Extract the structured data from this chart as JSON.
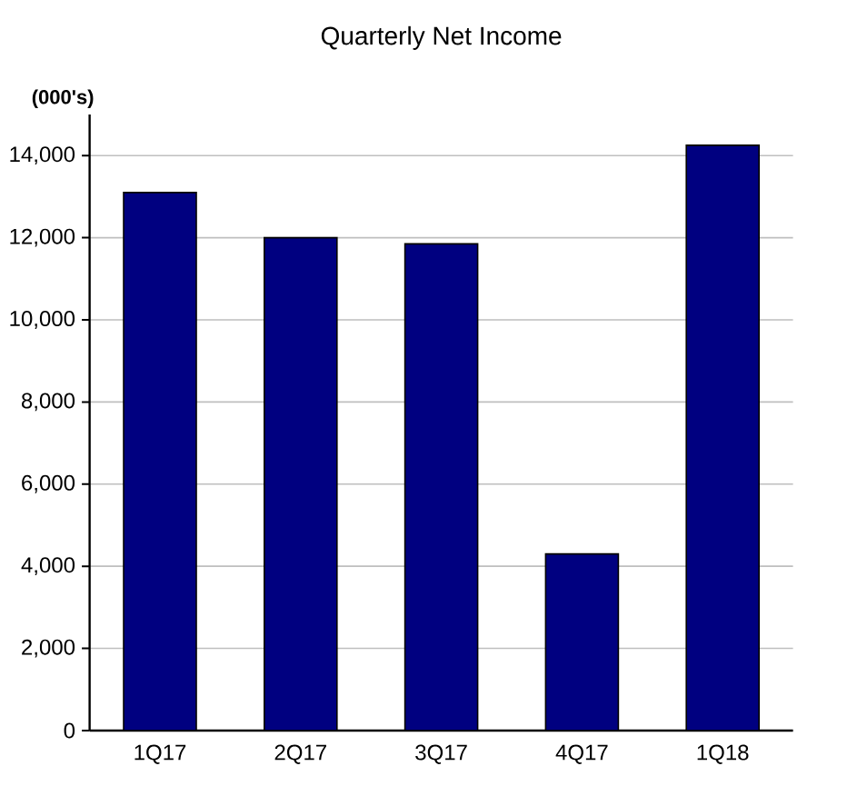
{
  "chart_data": {
    "type": "bar",
    "title": "Quarterly Net Income",
    "ylabel": "(000's)",
    "categories": [
      "1Q17",
      "2Q17",
      "3Q17",
      "4Q17",
      "1Q18"
    ],
    "values": [
      13100,
      12000,
      11850,
      4300,
      14250
    ],
    "color": "#000080",
    "ylim": [
      0,
      15000
    ],
    "yticks": [
      {
        "value": 0,
        "label": "0"
      },
      {
        "value": 2000,
        "label": "2,000"
      },
      {
        "value": 4000,
        "label": "4,000"
      },
      {
        "value": 6000,
        "label": "6,000"
      },
      {
        "value": 8000,
        "label": "8,000"
      },
      {
        "value": 10000,
        "label": "10,000"
      },
      {
        "value": 12000,
        "label": "12,000"
      },
      {
        "value": 14000,
        "label": "14,000"
      }
    ],
    "grid": "y"
  }
}
